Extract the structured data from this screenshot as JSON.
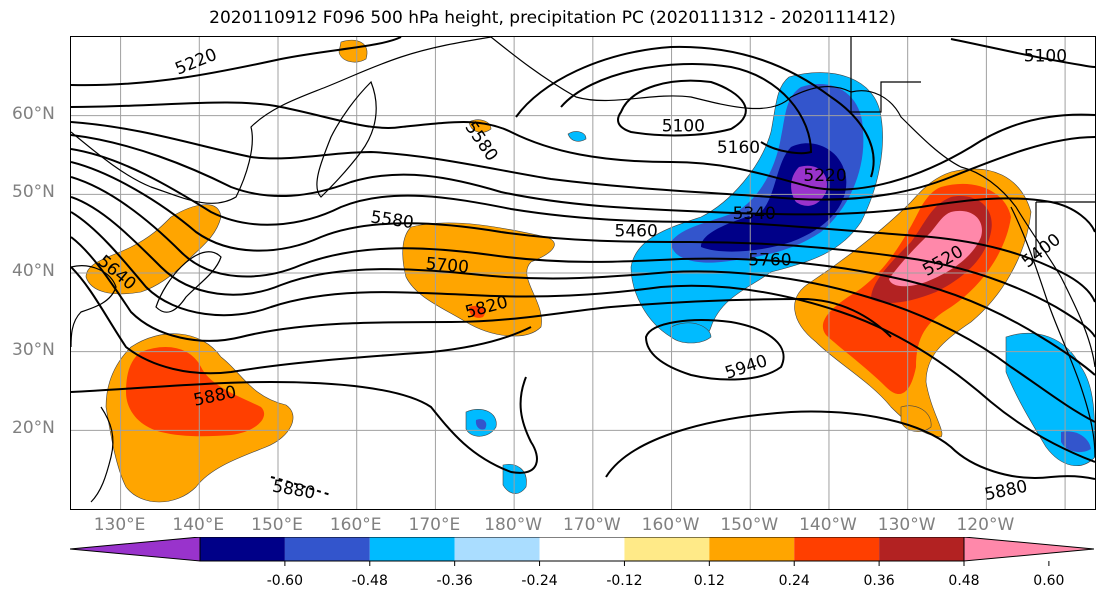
{
  "title": "2020110912 F096 500 hPa height, precipitation PC (2020111312 - 2020111412)",
  "lat_labels": [
    {
      "text": "60°N",
      "lat": 60
    },
    {
      "text": "50°N",
      "lat": 50
    },
    {
      "text": "40°N",
      "lat": 40
    },
    {
      "text": "30°N",
      "lat": 30
    },
    {
      "text": "20°N",
      "lat": 20
    }
  ],
  "lon_labels": [
    {
      "text": "130°E",
      "lon": 130
    },
    {
      "text": "140°E",
      "lon": 140
    },
    {
      "text": "150°E",
      "lon": 150
    },
    {
      "text": "160°E",
      "lon": 160
    },
    {
      "text": "170°E",
      "lon": 170
    },
    {
      "text": "180°W",
      "lon": 180
    },
    {
      "text": "170°W",
      "lon": 190
    },
    {
      "text": "160°W",
      "lon": 200
    },
    {
      "text": "150°W",
      "lon": 210
    },
    {
      "text": "140°W",
      "lon": 220
    },
    {
      "text": "130°W",
      "lon": 230
    },
    {
      "text": "120°W",
      "lon": 240
    }
  ],
  "map_extent": {
    "lon_min": 123.7,
    "lon_max": 253.8,
    "lat_min": 10,
    "lat_max": 70
  },
  "contour_labels": [
    {
      "text": "5220",
      "lon": 139.6,
      "lat": 66.8,
      "angle": -22
    },
    {
      "text": "5100",
      "lon": 247.5,
      "lat": 67.5,
      "angle": 0
    },
    {
      "text": "5100",
      "lon": 201.5,
      "lat": 58.6,
      "angle": 0
    },
    {
      "text": "5160",
      "lon": 208.5,
      "lat": 55.9,
      "angle": 0
    },
    {
      "text": "5220",
      "lon": 219.5,
      "lat": 52.3,
      "angle": 0
    },
    {
      "text": "5340",
      "lon": 210.5,
      "lat": 47.5,
      "angle": 0
    },
    {
      "text": "5460",
      "lon": 195.5,
      "lat": 45.3,
      "angle": 0
    },
    {
      "text": "5580",
      "lon": 164.5,
      "lat": 46.7,
      "angle": 8
    },
    {
      "text": "5580",
      "lon": 175.8,
      "lat": 56.7,
      "angle": 55
    },
    {
      "text": "5640",
      "lon": 129.5,
      "lat": 40.0,
      "angle": 40
    },
    {
      "text": "5700",
      "lon": 171.5,
      "lat": 40.9,
      "angle": 5
    },
    {
      "text": "5760",
      "lon": 212.5,
      "lat": 41.6,
      "angle": 0
    },
    {
      "text": "5820",
      "lon": 176.5,
      "lat": 35.6,
      "angle": -15
    },
    {
      "text": "5880",
      "lon": 142.0,
      "lat": 24.3,
      "angle": -12
    },
    {
      "text": "5880",
      "lon": 152.0,
      "lat": 12.4,
      "angle": 10
    },
    {
      "text": "5880",
      "lon": 242.5,
      "lat": 12.3,
      "angle": -12
    },
    {
      "text": "5940",
      "lon": 209.5,
      "lat": 28.0,
      "angle": -18
    },
    {
      "text": "5400",
      "lon": 247.0,
      "lat": 42.8,
      "angle": -38
    },
    {
      "text": "5520",
      "lon": 234.5,
      "lat": 41.5,
      "angle": -30
    }
  ],
  "colorbar": {
    "colors": [
      "#9933cc",
      "#000088",
      "#3355cc",
      "#00bbff",
      "#aaddff",
      "#ffffff",
      "#ffea88",
      "#ffa500",
      "#ff3f00",
      "#b22222",
      "#ff88aa"
    ],
    "tick_labels": [
      "-0.60",
      "-0.48",
      "-0.36",
      "-0.24",
      "-0.12",
      "0.12",
      "0.24",
      "0.36",
      "0.48",
      "0.60"
    ]
  }
}
